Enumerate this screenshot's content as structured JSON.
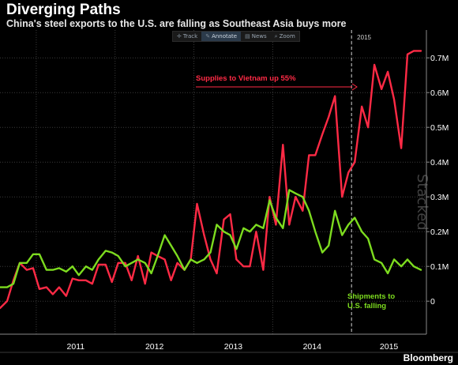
{
  "header": {
    "title": "Diverging Paths",
    "subtitle": "China's steel exports to the U.S. are falling as Southeast Asia buys more"
  },
  "toolbar": {
    "items": [
      {
        "label": "Track",
        "icon": "crosshair-icon",
        "active": false
      },
      {
        "label": "Annotate",
        "icon": "pencil-icon",
        "active": true
      },
      {
        "label": "News",
        "icon": "news-icon",
        "active": false
      },
      {
        "label": "Zoom",
        "icon": "zoom-icon",
        "active": false
      }
    ]
  },
  "watermark": "Stacked",
  "brand": "Bloomberg",
  "colors": {
    "background": "#000000",
    "vietnam": "#ff2a45",
    "us": "#7ddc1f",
    "grid": "#3a3a3a",
    "axis_text": "#ffffff"
  },
  "chart_data": {
    "type": "line",
    "title": "Diverging Paths",
    "subtitle": "China's steel exports to the U.S. are falling as Southeast Asia buys more",
    "x_labels": [
      "2011",
      "2012",
      "2013",
      "2014",
      "2015"
    ],
    "x_range": [
      2010.54,
      2015.95
    ],
    "y_ticks": [
      "0",
      "0.1M",
      "0.2M",
      "0.3M",
      "0.4M",
      "0.5M",
      "0.6M",
      "0.7M"
    ],
    "ylim": [
      -0.095,
      0.78
    ],
    "y_axis_position": "right",
    "grid": true,
    "vertical_marker": {
      "x": 2015.0,
      "label": "2015",
      "style": "dashed"
    },
    "annotations": [
      {
        "text": "Supplies to Vietnam up 55%",
        "series": "vietnam",
        "arrow": true
      },
      {
        "text": "Shipments to\nU.S. falling",
        "series": "us"
      }
    ],
    "series": [
      {
        "key": "vietnam",
        "color": "#ff2a45",
        "x": [
          2010.54,
          2010.63,
          2010.71,
          2010.79,
          2010.88,
          2010.96,
          2011.04,
          2011.13,
          2011.21,
          2011.29,
          2011.38,
          2011.46,
          2011.54,
          2011.63,
          2011.71,
          2011.79,
          2011.88,
          2011.96,
          2012.04,
          2012.13,
          2012.21,
          2012.29,
          2012.38,
          2012.46,
          2012.54,
          2012.63,
          2012.71,
          2012.79,
          2012.88,
          2012.96,
          2013.04,
          2013.13,
          2013.21,
          2013.29,
          2013.38,
          2013.46,
          2013.54,
          2013.63,
          2013.71,
          2013.79,
          2013.88,
          2013.96,
          2014.04,
          2014.13,
          2014.21,
          2014.29,
          2014.38,
          2014.46,
          2014.54,
          2014.63,
          2014.71,
          2014.79,
          2014.88,
          2014.96,
          2015.04,
          2015.13,
          2015.21,
          2015.29,
          2015.38,
          2015.46,
          2015.54,
          2015.63,
          2015.71,
          2015.79,
          2015.88
        ],
        "values": [
          -0.02,
          0.0,
          0.06,
          0.11,
          0.09,
          0.095,
          0.035,
          0.04,
          0.02,
          0.04,
          0.015,
          0.065,
          0.06,
          0.06,
          0.05,
          0.105,
          0.105,
          0.055,
          0.11,
          0.11,
          0.06,
          0.13,
          0.05,
          0.14,
          0.13,
          0.12,
          0.06,
          0.11,
          0.09,
          0.12,
          0.28,
          0.19,
          0.12,
          0.08,
          0.235,
          0.25,
          0.12,
          0.1,
          0.1,
          0.2,
          0.09,
          0.3,
          0.22,
          0.45,
          0.22,
          0.3,
          0.26,
          0.42,
          0.42,
          0.48,
          0.53,
          0.59,
          0.3,
          0.37,
          0.4,
          0.56,
          0.5,
          0.68,
          0.61,
          0.66,
          0.58,
          0.44,
          0.71,
          0.72,
          0.72
        ]
      },
      {
        "key": "us",
        "color": "#7ddc1f",
        "x": [
          2010.54,
          2010.63,
          2010.71,
          2010.79,
          2010.88,
          2010.96,
          2011.04,
          2011.13,
          2011.21,
          2011.29,
          2011.38,
          2011.46,
          2011.54,
          2011.63,
          2011.71,
          2011.79,
          2011.88,
          2011.96,
          2012.04,
          2012.13,
          2012.21,
          2012.29,
          2012.38,
          2012.46,
          2012.54,
          2012.63,
          2012.71,
          2012.79,
          2012.88,
          2012.96,
          2013.04,
          2013.13,
          2013.21,
          2013.29,
          2013.38,
          2013.46,
          2013.54,
          2013.63,
          2013.71,
          2013.79,
          2013.88,
          2013.96,
          2014.04,
          2014.13,
          2014.21,
          2014.29,
          2014.38,
          2014.46,
          2014.54,
          2014.63,
          2014.71,
          2014.79,
          2014.88,
          2014.96,
          2015.04,
          2015.13,
          2015.21,
          2015.29,
          2015.38,
          2015.46,
          2015.54,
          2015.63,
          2015.71,
          2015.79,
          2015.88
        ],
        "values": [
          0.04,
          0.04,
          0.05,
          0.11,
          0.11,
          0.135,
          0.135,
          0.09,
          0.09,
          0.095,
          0.085,
          0.1,
          0.075,
          0.1,
          0.09,
          0.12,
          0.145,
          0.14,
          0.13,
          0.1,
          0.11,
          0.12,
          0.11,
          0.08,
          0.13,
          0.19,
          0.16,
          0.13,
          0.09,
          0.12,
          0.11,
          0.12,
          0.14,
          0.22,
          0.2,
          0.19,
          0.15,
          0.21,
          0.2,
          0.22,
          0.21,
          0.29,
          0.24,
          0.21,
          0.32,
          0.31,
          0.3,
          0.26,
          0.2,
          0.14,
          0.16,
          0.26,
          0.19,
          0.22,
          0.24,
          0.2,
          0.18,
          0.12,
          0.11,
          0.08,
          0.12,
          0.1,
          0.12,
          0.1,
          0.09
        ]
      }
    ]
  }
}
